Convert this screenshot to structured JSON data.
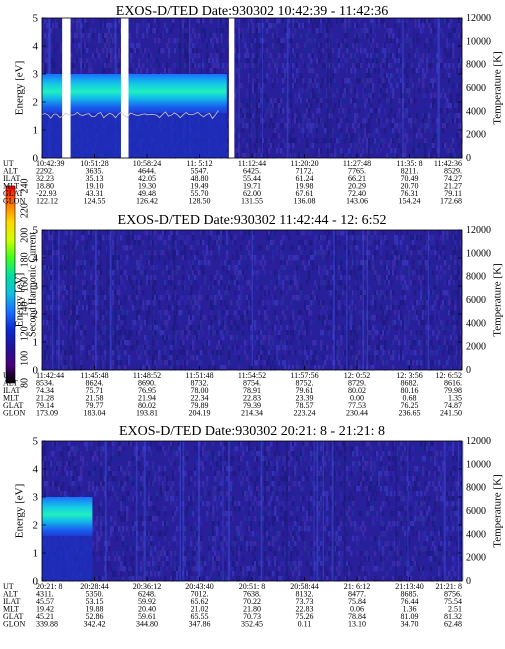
{
  "colorbar": {
    "label": "Second Harmonic Current",
    "ticks": [
      80,
      100,
      120,
      140,
      160,
      180,
      200,
      220,
      240
    ],
    "range": [
      80,
      240
    ],
    "colors": [
      "#000000",
      "#4a007a",
      "#22139a",
      "#0b2bd0",
      "#1a6fff",
      "#12bfe0",
      "#00e0a0",
      "#40ff20",
      "#d0ff00",
      "#ffd800",
      "#ff7a00",
      "#ff0000"
    ]
  },
  "chart_data": [
    {
      "type": "heatmap",
      "title": "EXOS-D/TED   Date:930302  10:42:39 - 11:42:36",
      "ylabel": "Energy [eV]",
      "y2label": "Temperature [K]",
      "ylim": [
        0,
        5
      ],
      "yticks": [
        0,
        1,
        2,
        3,
        4,
        5
      ],
      "y2lim": [
        0,
        12000
      ],
      "y2ticks": [
        0,
        2000,
        4000,
        6000,
        8000,
        10000,
        12000
      ],
      "row_labels": [
        "UT",
        "ALT",
        "ILAT",
        "MLT",
        "GLAT",
        "GLON"
      ],
      "columns": [
        [
          "10:42:39",
          "2292.",
          "32.23",
          "18.80",
          "-22.93",
          "122.12"
        ],
        [
          "10:51:28",
          "3635.",
          "35.13",
          "19.10",
          "43.31",
          "124.55"
        ],
        [
          "10:58:24",
          "4644.",
          "42.05",
          "19.30",
          "49.48",
          "126.42"
        ],
        [
          "11: 5:12",
          "5547.",
          "48.80",
          "19.49",
          "55.70",
          "128.50"
        ],
        [
          "11:12:44",
          "6425.",
          "55.44",
          "19.71",
          "62.00",
          "131.55"
        ],
        [
          "11:20:20",
          "7172.",
          "61.24",
          "19.98",
          "67.61",
          "136.08"
        ],
        [
          "11:27:48",
          "7765.",
          "66.21",
          "20.29",
          "72.40",
          "143.06"
        ],
        [
          "11:35: 8",
          "8211.",
          "70.49",
          "20.70",
          "76.31",
          "154.24"
        ],
        [
          "11:42:36",
          "8529.",
          "74.27",
          "21.27",
          "79.11",
          "172.68"
        ]
      ],
      "gaps_fraction": [
        [
          0.048,
          0.068
        ],
        [
          0.188,
          0.206
        ],
        [
          0.445,
          0.458
        ]
      ],
      "bright_band": {
        "x_fraction": [
          0,
          0.44
        ],
        "y_range": [
          1.6,
          3.0
        ]
      },
      "temperature_trace": {
        "x_fraction": [
          0,
          0.42
        ],
        "y_range": [
          1.4,
          1.7
        ]
      }
    },
    {
      "type": "heatmap",
      "title": "EXOS-D/TED   Date:930302  11:42:44 - 12: 6:52",
      "ylabel": "Energy [eV]",
      "y2label": "Temperature [K]",
      "ylim": [
        0,
        5
      ],
      "yticks": [
        0,
        1,
        2,
        3,
        4,
        5
      ],
      "y2lim": [
        0,
        12000
      ],
      "y2ticks": [
        0,
        2000,
        4000,
        6000,
        8000,
        10000,
        12000
      ],
      "row_labels": [
        "UT",
        "ALT",
        "ILAT",
        "MLT",
        "GLAT",
        "GLON"
      ],
      "columns": [
        [
          "11:42:44",
          "8534.",
          "74.34",
          "21.28",
          "79.14",
          "173.09"
        ],
        [
          "11:45:48",
          "8624.",
          "75.71",
          "21.58",
          "79.77",
          "183.04"
        ],
        [
          "11:48:52",
          "8690.",
          "76.95",
          "21.94",
          "80.02",
          "193.81"
        ],
        [
          "11:51:48",
          "8732.",
          "78.00",
          "22.34",
          "79.89",
          "204.19"
        ],
        [
          "11:54:52",
          "8754.",
          "78.91",
          "22.83",
          "79.39",
          "214.34"
        ],
        [
          "11:57:56",
          "8752.",
          "79.61",
          "23.39",
          "78.57",
          "223.24"
        ],
        [
          "12: 0:52",
          "8729.",
          "80.02",
          "0.00",
          "77.53",
          "230.44"
        ],
        [
          "12: 3:56",
          "8682.",
          "80.16",
          "0.68",
          "76.25",
          "236.65"
        ],
        [
          "12: 6:52",
          "8616.",
          "79.98",
          "1.35",
          "74.87",
          "241.50"
        ]
      ],
      "gaps_fraction": [],
      "bright_band": null,
      "temperature_trace": null
    },
    {
      "type": "heatmap",
      "title": "EXOS-D/TED   Date:930302  20:21: 8 - 21:21: 8",
      "ylabel": "Energy [eV]",
      "y2label": "Temperature [K]",
      "ylim": [
        0,
        5
      ],
      "yticks": [
        0,
        1,
        2,
        3,
        4,
        5
      ],
      "y2lim": [
        0,
        12000
      ],
      "y2ticks": [
        0,
        2000,
        4000,
        6000,
        8000,
        10000,
        12000
      ],
      "row_labels": [
        "UT",
        "ALT",
        "ILAT",
        "MLT",
        "GLAT",
        "GLON"
      ],
      "columns": [
        [
          "20:21: 8",
          "4311.",
          "45.57",
          "19.42",
          "45.21",
          "339.88"
        ],
        [
          "20:28:44",
          "5350.",
          "53.15",
          "19.88",
          "52.86",
          "342.42"
        ],
        [
          "20:36:12",
          "6248.",
          "59.92",
          "20.40",
          "59.61",
          "344.80"
        ],
        [
          "20:43:40",
          "7012.",
          "65.62",
          "21.02",
          "65.55",
          "347.86"
        ],
        [
          "20:51: 8",
          "7638.",
          "70.22",
          "21.80",
          "70.73",
          "352.45"
        ],
        [
          "20:58:44",
          "8132.",
          "73.73",
          "22.83",
          "75.26",
          "0.11"
        ],
        [
          "21: 6:12",
          "8477.",
          "75.84",
          "0.06",
          "78.84",
          "13.10"
        ],
        [
          "21:13:40",
          "8685.",
          "76.44",
          "1.36",
          "81.09",
          "34.70"
        ],
        [
          "21:21: 8",
          "8756.",
          "75.54",
          "2.51",
          "81.32",
          "62.48"
        ]
      ],
      "gaps_fraction": [],
      "bright_band": {
        "x_fraction": [
          0,
          0.12
        ],
        "y_range": [
          1.6,
          3.0
        ]
      },
      "temperature_trace": null
    }
  ]
}
